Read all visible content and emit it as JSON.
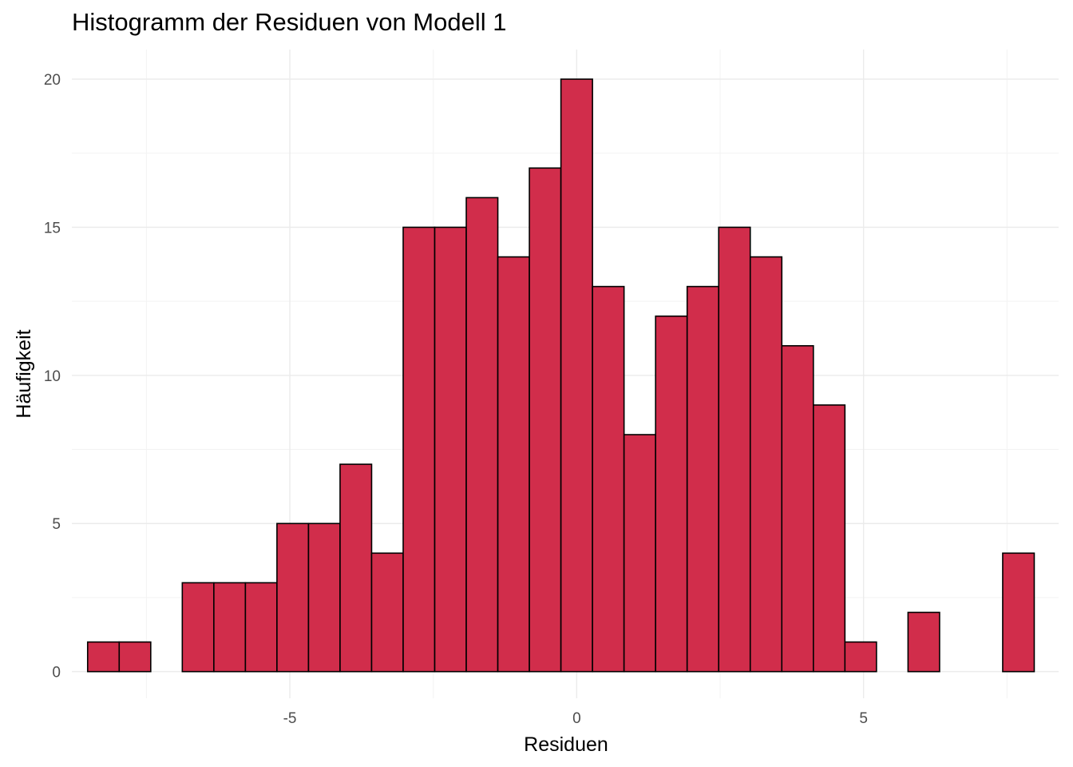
{
  "chart_data": {
    "type": "bar",
    "title": "Histogramm der Residuen von Modell 1",
    "xlabel": "Residuen",
    "ylabel": "Häufigkeit",
    "xlim": [
      -8.8,
      8.4
    ],
    "ylim": [
      -0.9,
      21
    ],
    "x_ticks": [
      -5,
      0,
      5
    ],
    "x_tick_labels": [
      "-5",
      "0",
      "5"
    ],
    "y_ticks": [
      0,
      5,
      10,
      15,
      20
    ],
    "y_tick_labels": [
      "0",
      "5",
      "10",
      "15",
      "20"
    ],
    "grid": true,
    "legend": "none",
    "bin_width": 0.55,
    "bins": [
      {
        "x": -8.25,
        "count": 1
      },
      {
        "x": -7.7,
        "count": 1
      },
      {
        "x": -7.15,
        "count": 0
      },
      {
        "x": -6.6,
        "count": 3
      },
      {
        "x": -6.05,
        "count": 3
      },
      {
        "x": -5.5,
        "count": 3
      },
      {
        "x": -4.95,
        "count": 5
      },
      {
        "x": -4.4,
        "count": 5
      },
      {
        "x": -3.85,
        "count": 7
      },
      {
        "x": -3.3,
        "count": 4
      },
      {
        "x": -2.75,
        "count": 15
      },
      {
        "x": -2.2,
        "count": 15
      },
      {
        "x": -1.65,
        "count": 16
      },
      {
        "x": -1.1,
        "count": 14
      },
      {
        "x": -0.55,
        "count": 17
      },
      {
        "x": 0.0,
        "count": 20
      },
      {
        "x": 0.55,
        "count": 13
      },
      {
        "x": 1.1,
        "count": 8
      },
      {
        "x": 1.65,
        "count": 12
      },
      {
        "x": 2.2,
        "count": 13
      },
      {
        "x": 2.75,
        "count": 15
      },
      {
        "x": 3.3,
        "count": 14
      },
      {
        "x": 3.85,
        "count": 11
      },
      {
        "x": 4.4,
        "count": 9
      },
      {
        "x": 4.95,
        "count": 1
      },
      {
        "x": 5.5,
        "count": 0
      },
      {
        "x": 6.05,
        "count": 2
      },
      {
        "x": 6.6,
        "count": 0
      },
      {
        "x": 7.15,
        "count": 0
      },
      {
        "x": 7.7,
        "count": 4
      }
    ],
    "colors": {
      "bar_fill": "#d12d4b",
      "bar_outline": "#000000",
      "grid": "#ebebeb",
      "background": "#ffffff"
    }
  }
}
